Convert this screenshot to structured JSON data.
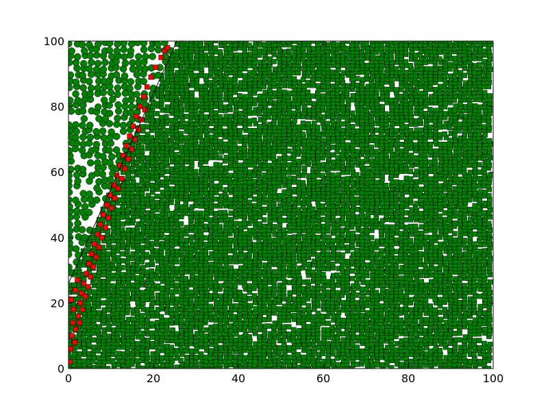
{
  "chart_data": {
    "type": "scatter",
    "title": "",
    "xlabel": "",
    "ylabel": "",
    "xlim": [
      0,
      100
    ],
    "ylim": [
      0,
      100
    ],
    "grid": false,
    "legend": "none",
    "x_ticks": [
      "0",
      "20",
      "40",
      "60",
      "80",
      "100"
    ],
    "y_ticks": [
      "0",
      "20",
      "40",
      "60",
      "80",
      "100"
    ],
    "boundary_line": {
      "from": [
        0,
        26
      ],
      "to": [
        25.5,
        100
      ],
      "color": "#000000"
    },
    "red_band": [
      [
        0.3,
        2
      ],
      [
        0.5,
        6
      ],
      [
        0.8,
        10
      ],
      [
        1.0,
        14
      ],
      [
        1.2,
        18
      ],
      [
        0.6,
        21
      ],
      [
        1.6,
        24
      ],
      [
        2.1,
        27
      ],
      [
        1.7,
        12
      ],
      [
        2.3,
        16
      ],
      [
        2.8,
        20
      ],
      [
        3.1,
        23
      ],
      [
        3.6,
        26
      ],
      [
        4.2,
        29
      ],
      [
        4.8,
        32
      ],
      [
        5.4,
        35
      ],
      [
        6.1,
        38
      ],
      [
        6.8,
        41
      ],
      [
        7.5,
        44
      ],
      [
        8.2,
        47
      ],
      [
        9.0,
        50
      ],
      [
        9.8,
        53
      ],
      [
        10.6,
        56
      ],
      [
        11.4,
        59
      ],
      [
        12.1,
        62
      ],
      [
        12.9,
        65
      ],
      [
        13.6,
        68
      ],
      [
        14.4,
        71
      ],
      [
        15.2,
        74
      ],
      [
        16.0,
        77
      ],
      [
        16.8,
        80
      ],
      [
        17.7,
        83
      ],
      [
        18.5,
        86
      ],
      [
        19.4,
        89
      ],
      [
        20.5,
        92
      ],
      [
        21.8,
        95
      ],
      [
        22.6,
        97
      ],
      [
        23.3,
        98
      ],
      [
        1.5,
        8
      ],
      [
        2.6,
        14
      ],
      [
        3.3,
        18
      ],
      [
        4.0,
        22
      ],
      [
        4.6,
        25
      ],
      [
        5.2,
        28
      ],
      [
        5.8,
        31
      ],
      [
        6.5,
        34
      ],
      [
        7.2,
        37
      ],
      [
        7.9,
        40
      ],
      [
        8.7,
        43
      ],
      [
        9.4,
        46
      ],
      [
        10.1,
        49
      ],
      [
        10.9,
        52
      ],
      [
        11.7,
        55
      ],
      [
        12.5,
        58
      ],
      [
        13.3,
        61
      ],
      [
        14.1,
        64
      ],
      [
        14.9,
        67
      ],
      [
        15.6,
        70
      ],
      [
        16.4,
        73
      ],
      [
        17.2,
        76
      ],
      [
        18.0,
        79
      ]
    ],
    "series": [
      {
        "marker": "circle",
        "color": "#008000",
        "region": "above boundary line (x < boundary)"
      },
      {
        "marker": "square",
        "color": "#008000",
        "region": "below boundary line"
      },
      {
        "marker": "square",
        "color": "#ff0000",
        "region": "band just below boundary line"
      }
    ]
  }
}
